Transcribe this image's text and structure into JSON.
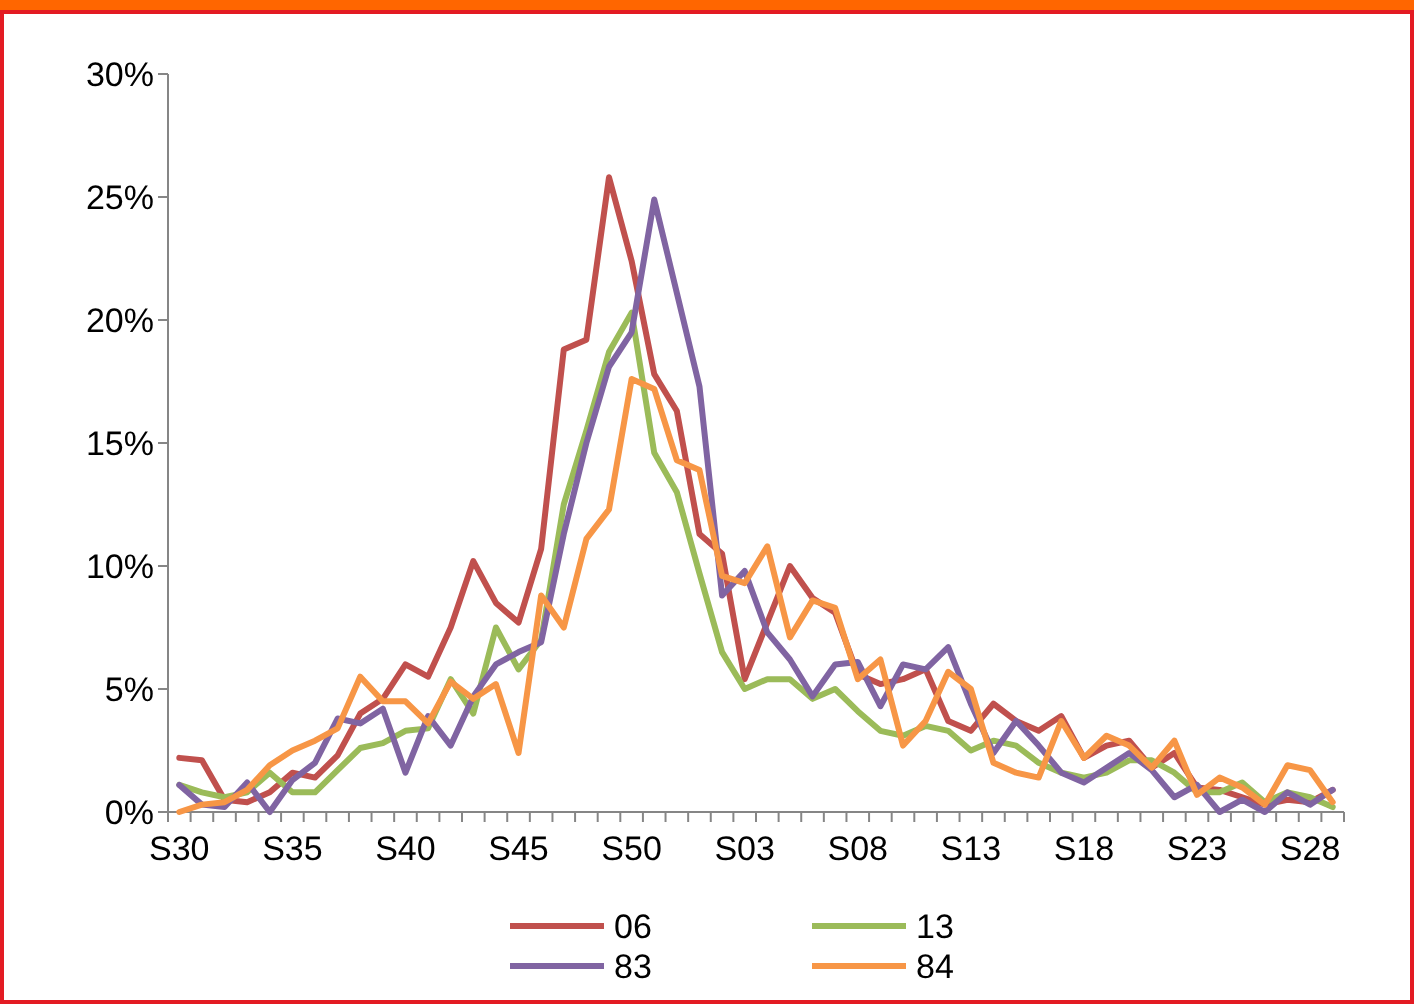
{
  "chart_data": {
    "type": "line",
    "categories": [
      "S30",
      null,
      null,
      null,
      null,
      "S35",
      null,
      null,
      null,
      null,
      "S40",
      null,
      null,
      null,
      null,
      "S45",
      null,
      null,
      null,
      null,
      "S50",
      null,
      null,
      null,
      null,
      "S03",
      null,
      null,
      null,
      null,
      "S08",
      null,
      null,
      null,
      null,
      "S13",
      null,
      null,
      null,
      null,
      "S18",
      null,
      null,
      null,
      null,
      "S23",
      null,
      null,
      null,
      null,
      "S28",
      null
    ],
    "ylim": [
      0,
      30
    ],
    "yticks": [
      {
        "value": 0,
        "label": "0%"
      },
      {
        "value": 5,
        "label": "5%"
      },
      {
        "value": 10,
        "label": "10%"
      },
      {
        "value": 15,
        "label": "15%"
      },
      {
        "value": 20,
        "label": "20%"
      },
      {
        "value": 25,
        "label": "25%"
      },
      {
        "value": 30,
        "label": "30%"
      }
    ],
    "legend": "bottom",
    "grid": false,
    "marker": "none",
    "line_style": "solid",
    "series": [
      {
        "name": "06",
        "color": "#c0504d",
        "values": [
          2.2,
          2.1,
          0.5,
          0.4,
          0.8,
          1.6,
          1.4,
          2.3,
          4.0,
          4.6,
          6.0,
          5.5,
          7.5,
          10.2,
          8.5,
          7.7,
          10.7,
          18.8,
          19.2,
          25.8,
          22.4,
          17.8,
          16.3,
          11.3,
          10.5,
          5.4,
          7.7,
          10.0,
          8.7,
          8.1,
          5.6,
          5.2,
          5.4,
          5.8,
          3.7,
          3.3,
          4.4,
          3.7,
          3.3,
          3.9,
          2.2,
          2.7,
          2.9,
          1.8,
          2.4,
          1.0,
          0.9,
          0.6,
          0.3,
          0.5,
          0.4,
          0.9
        ]
      },
      {
        "name": "13",
        "color": "#9bbb59",
        "values": [
          1.1,
          0.8,
          0.6,
          0.8,
          1.6,
          0.8,
          0.8,
          1.7,
          2.6,
          2.8,
          3.3,
          3.4,
          5.4,
          4.0,
          7.5,
          5.8,
          7.0,
          12.5,
          15.5,
          18.7,
          20.3,
          14.6,
          13.0,
          9.7,
          6.5,
          5.0,
          5.4,
          5.4,
          4.6,
          5.0,
          4.1,
          3.3,
          3.1,
          3.5,
          3.3,
          2.5,
          2.9,
          2.7,
          2.0,
          1.6,
          1.4,
          1.6,
          2.1,
          2.1,
          1.6,
          0.8,
          0.8,
          1.2,
          0.4,
          0.8,
          0.6,
          0.2
        ]
      },
      {
        "name": "83",
        "color": "#8064a2",
        "values": [
          1.1,
          0.3,
          0.2,
          1.2,
          0,
          1.3,
          2.0,
          3.8,
          3.6,
          4.2,
          1.6,
          3.9,
          2.7,
          4.7,
          6.0,
          6.5,
          6.9,
          11.3,
          15.0,
          18.1,
          19.5,
          24.9,
          21.1,
          17.3,
          8.8,
          9.8,
          7.3,
          6.2,
          4.7,
          6.0,
          6.1,
          4.3,
          6.0,
          5.8,
          6.7,
          4.4,
          2.4,
          3.7,
          2.7,
          1.6,
          1.2,
          1.8,
          2.4,
          1.7,
          0.6,
          1.1,
          0,
          0.5,
          0,
          0.8,
          0.3,
          0.9
        ]
      },
      {
        "name": "84",
        "color": "#f79646",
        "values": [
          0,
          0.3,
          0.4,
          0.9,
          1.9,
          2.5,
          2.9,
          3.4,
          5.5,
          4.5,
          4.5,
          3.6,
          5.3,
          4.6,
          5.2,
          2.4,
          8.8,
          7.5,
          11.1,
          12.3,
          17.6,
          17.2,
          14.3,
          13.9,
          9.6,
          9.3,
          10.8,
          7.1,
          8.6,
          8.3,
          5.4,
          6.2,
          2.7,
          3.7,
          5.7,
          5.0,
          2.0,
          1.6,
          1.4,
          3.7,
          2.2,
          3.1,
          2.7,
          1.8,
          2.9,
          0.7,
          1.4,
          1.0,
          0.3,
          1.9,
          1.7,
          0.4
        ]
      }
    ]
  }
}
